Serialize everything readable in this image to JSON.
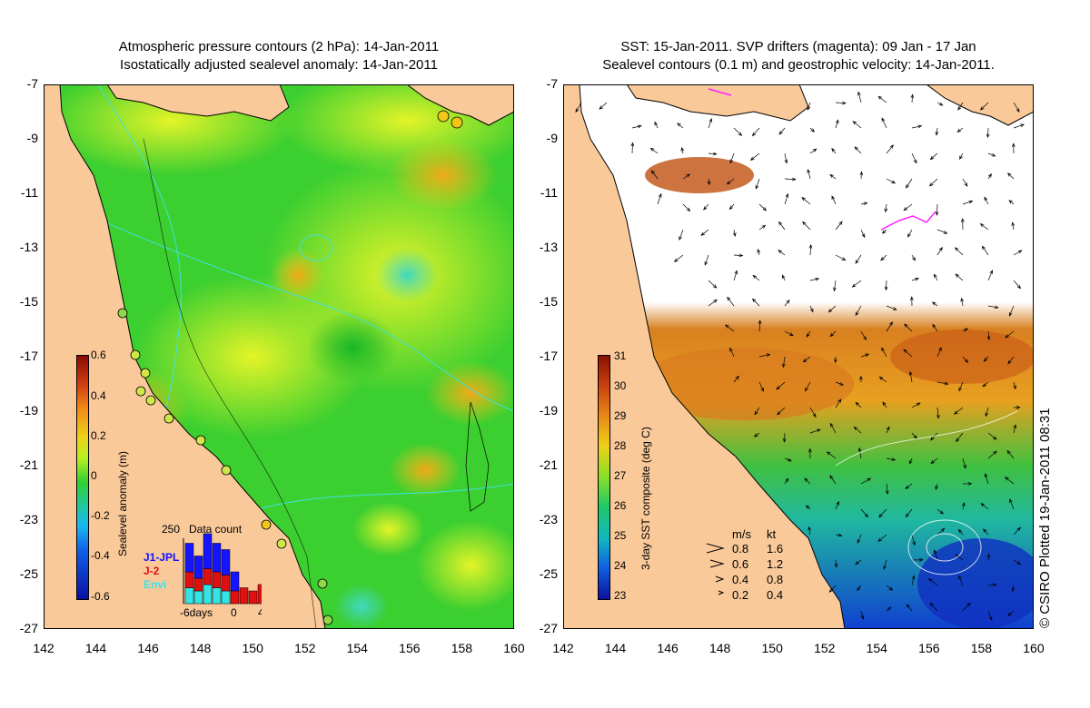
{
  "left_panel": {
    "title_line1": "Atmospheric pressure contours (2 hPa): 14-Jan-2011",
    "title_line2": "Isostatically adjusted sealevel anomaly: 14-Jan-2011",
    "colorbar": {
      "label": "Sealevel anomaly (m)",
      "ticks": [
        "0.6",
        "0.4",
        "0.2",
        "0",
        "-0.2",
        "-0.4",
        "-0.6"
      ]
    },
    "histogram": {
      "title": "Data count",
      "ymax_label": "250",
      "legend": [
        {
          "name": "J1-JPL",
          "color": "#1414ff"
        },
        {
          "name": "J-2",
          "color": "#e01010"
        },
        {
          "name": "Envi",
          "color": "#33e5e5"
        }
      ],
      "x_labels": [
        "-6days",
        "0",
        "4"
      ],
      "bars": [
        {
          "blue": 0.45,
          "red": 0.25,
          "cyan": 0.25
        },
        {
          "blue": 0.35,
          "red": 0.2,
          "cyan": 0.2
        },
        {
          "blue": 0.55,
          "red": 0.25,
          "cyan": 0.3
        },
        {
          "blue": 0.45,
          "red": 0.25,
          "cyan": 0.25
        },
        {
          "blue": 0.4,
          "red": 0.25,
          "cyan": 0.2
        },
        {
          "blue": 0.3,
          "red": 0.2,
          "cyan": 0.0
        },
        {
          "blue": 0.0,
          "red": 0.25,
          "cyan": 0.0
        },
        {
          "blue": 0.0,
          "red": 0.2,
          "cyan": 0.0
        },
        {
          "blue": 0.0,
          "red": 0.3,
          "cyan": 0.0
        }
      ]
    }
  },
  "right_panel": {
    "title_line1": "SST: 15-Jan-2011. SVP drifters (magenta): 09 Jan - 17 Jan",
    "title_line2": "Sealevel contours (0.1 m) and geostrophic velocity: 14-Jan-2011.",
    "colorbar": {
      "label": "3-day SST composite (deg C)",
      "ticks": [
        "31",
        "30",
        "29",
        "28",
        "27",
        "26",
        "25",
        "24",
        "23"
      ]
    },
    "velocity_legend": {
      "header_ms": "m/s",
      "header_kt": "kt",
      "rows": [
        {
          "ms": "0.8",
          "kt": "1.6"
        },
        {
          "ms": "0.6",
          "kt": "1.2"
        },
        {
          "ms": "0.4",
          "kt": "0.8"
        },
        {
          "ms": "0.2",
          "kt": "0.4"
        }
      ]
    },
    "credit": "© CSIRO Plotted 19-Jan-2011 08:31"
  },
  "axes": {
    "lat_ticks": [
      "-7",
      "-9",
      "-11",
      "-13",
      "-15",
      "-17",
      "-19",
      "-21",
      "-23",
      "-25",
      "-27"
    ],
    "lon_ticks": [
      "142",
      "144",
      "146",
      "148",
      "150",
      "152",
      "154",
      "156",
      "158",
      "160"
    ]
  },
  "colors": {
    "land": "#f9c99a",
    "sla_green": "#2ccc2c",
    "sla_yellow": "#d8f020",
    "sla_orange": "#f0b418",
    "sla_cyan": "#40d8b0",
    "sst_orange": "#e08820",
    "sst_brown": "#b04010",
    "sst_blue": "#1060e0"
  }
}
